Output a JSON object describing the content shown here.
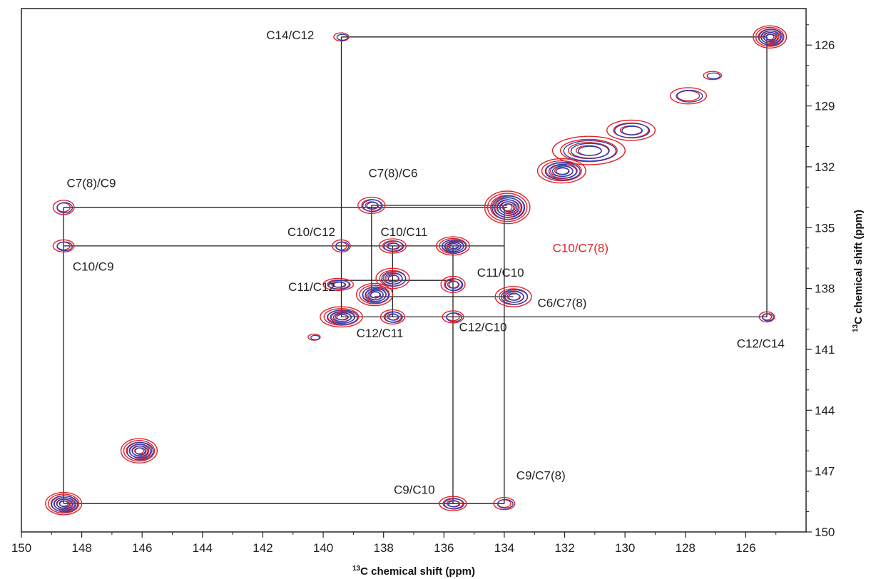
{
  "chart_data": {
    "type": "contour",
    "xlabel_super": "13",
    "xlabel_text": "C chemical shift (ppm)",
    "ylabel_super": "13",
    "ylabel_text": "C chemical shift (ppm)",
    "xlim": [
      150,
      124
    ],
    "ylim": [
      124.2,
      150
    ],
    "x_reversed": true,
    "y_axis_side": "right",
    "x_ticks": [
      150,
      148,
      146,
      144,
      142,
      140,
      138,
      136,
      134,
      132,
      130,
      128,
      126
    ],
    "y_ticks": [
      126,
      129,
      132,
      135,
      138,
      141,
      144,
      147,
      150
    ],
    "colors": {
      "spectrum_a": "#e0242b",
      "spectrum_b": "#2a3fb0",
      "connector": "#222222"
    },
    "peaks": [
      {
        "x": 125.2,
        "y": 125.6,
        "rx": 0.55,
        "ry": 0.55,
        "levels": 6
      },
      {
        "x": 127.9,
        "y": 128.5,
        "rx": 0.6,
        "ry": 0.4,
        "levels": 2
      },
      {
        "x": 129.8,
        "y": 130.2,
        "rx": 0.8,
        "ry": 0.5,
        "levels": 3
      },
      {
        "x": 131.2,
        "y": 131.2,
        "rx": 1.2,
        "ry": 0.7,
        "levels": 4
      },
      {
        "x": 132.1,
        "y": 132.2,
        "rx": 0.8,
        "ry": 0.6,
        "levels": 5
      },
      {
        "x": 133.9,
        "y": 134.0,
        "rx": 0.75,
        "ry": 0.8,
        "levels": 7
      },
      {
        "x": 133.7,
        "y": 138.4,
        "rx": 0.6,
        "ry": 0.5,
        "levels": 4
      },
      {
        "x": 135.7,
        "y": 135.9,
        "rx": 0.55,
        "ry": 0.45,
        "levels": 5
      },
      {
        "x": 135.7,
        "y": 137.8,
        "rx": 0.4,
        "ry": 0.4,
        "levels": 3
      },
      {
        "x": 135.7,
        "y": 139.4,
        "rx": 0.35,
        "ry": 0.3,
        "levels": 2
      },
      {
        "x": 137.7,
        "y": 135.9,
        "rx": 0.45,
        "ry": 0.35,
        "levels": 3
      },
      {
        "x": 138.4,
        "y": 133.9,
        "rx": 0.45,
        "ry": 0.4,
        "levels": 3
      },
      {
        "x": 137.7,
        "y": 137.5,
        "rx": 0.55,
        "ry": 0.5,
        "levels": 4
      },
      {
        "x": 138.3,
        "y": 138.3,
        "rx": 0.6,
        "ry": 0.55,
        "levels": 5
      },
      {
        "x": 137.7,
        "y": 139.4,
        "rx": 0.4,
        "ry": 0.35,
        "levels": 3
      },
      {
        "x": 139.4,
        "y": 139.4,
        "rx": 0.7,
        "ry": 0.5,
        "levels": 5
      },
      {
        "x": 139.5,
        "y": 137.8,
        "rx": 0.5,
        "ry": 0.3,
        "levels": 3
      },
      {
        "x": 139.4,
        "y": 135.9,
        "rx": 0.3,
        "ry": 0.3,
        "levels": 2
      },
      {
        "x": 146.1,
        "y": 146.0,
        "rx": 0.6,
        "ry": 0.6,
        "levels": 6
      },
      {
        "x": 148.6,
        "y": 148.6,
        "rx": 0.6,
        "ry": 0.55,
        "levels": 6
      },
      {
        "x": 148.6,
        "y": 134.0,
        "rx": 0.35,
        "ry": 0.35,
        "levels": 2
      },
      {
        "x": 148.6,
        "y": 135.9,
        "rx": 0.35,
        "ry": 0.3,
        "levels": 2
      },
      {
        "x": 135.7,
        "y": 148.6,
        "rx": 0.45,
        "ry": 0.35,
        "levels": 3
      },
      {
        "x": 134.0,
        "y": 148.6,
        "rx": 0.35,
        "ry": 0.3,
        "levels": 2
      },
      {
        "x": 125.3,
        "y": 139.4,
        "rx": 0.25,
        "ry": 0.25,
        "levels": 2
      },
      {
        "x": 139.4,
        "y": 125.6,
        "rx": 0.25,
        "ry": 0.2,
        "levels": 1
      },
      {
        "x": 127.1,
        "y": 127.5,
        "rx": 0.3,
        "ry": 0.2,
        "levels": 1
      },
      {
        "x": 140.3,
        "y": 140.4,
        "rx": 0.2,
        "ry": 0.15,
        "levels": 1
      }
    ],
    "connectors": [
      [
        139.4,
        125.6,
        125.3,
        125.6
      ],
      [
        125.3,
        125.6,
        125.3,
        139.4
      ],
      [
        139.4,
        125.6,
        139.4,
        139.4
      ],
      [
        148.6,
        134.0,
        133.9,
        134.0
      ],
      [
        148.6,
        134.0,
        148.6,
        148.6
      ],
      [
        148.6,
        148.6,
        134.0,
        148.6
      ],
      [
        148.6,
        135.9,
        134.0,
        135.9
      ],
      [
        139.4,
        139.4,
        125.3,
        139.4
      ],
      [
        138.4,
        133.9,
        133.9,
        133.9
      ],
      [
        138.4,
        133.9,
        138.4,
        138.3
      ],
      [
        139.5,
        137.6,
        135.7,
        137.6
      ],
      [
        137.7,
        135.9,
        137.7,
        139.4
      ],
      [
        138.3,
        138.4,
        133.7,
        138.4
      ],
      [
        135.7,
        135.9,
        135.7,
        148.6
      ],
      [
        134.0,
        134.0,
        134.0,
        148.6
      ]
    ],
    "annotations": [
      {
        "text": "C14/C12",
        "x": 140.3,
        "y": 125.5,
        "anchor": "end",
        "color": "dark"
      },
      {
        "text": "C7(8)/C9",
        "x": 148.5,
        "y": 132.8,
        "anchor": "start",
        "color": "dark"
      },
      {
        "text": "C10/C9",
        "x": 148.3,
        "y": 136.9,
        "anchor": "start",
        "color": "dark"
      },
      {
        "text": "C7(8)/C6",
        "x": 138.5,
        "y": 132.3,
        "anchor": "start",
        "color": "dark"
      },
      {
        "text": "C10/C12",
        "x": 139.6,
        "y": 135.2,
        "anchor": "end",
        "color": "dark"
      },
      {
        "text": "C10/C11",
        "x": 138.1,
        "y": 135.2,
        "anchor": "start",
        "color": "dark"
      },
      {
        "text": "C10/C7(8)",
        "x": 132.4,
        "y": 136.0,
        "anchor": "start",
        "color": "red"
      },
      {
        "text": "C11/C12",
        "x": 139.6,
        "y": 137.9,
        "anchor": "end",
        "color": "dark"
      },
      {
        "text": "C11/C10",
        "x": 134.9,
        "y": 137.2,
        "anchor": "start",
        "color": "dark"
      },
      {
        "text": "C6/C7(8)",
        "x": 132.9,
        "y": 138.7,
        "anchor": "start",
        "color": "dark"
      },
      {
        "text": "C12/C11",
        "x": 138.9,
        "y": 140.2,
        "anchor": "start",
        "color": "dark"
      },
      {
        "text": "C12/C10",
        "x": 135.5,
        "y": 139.9,
        "anchor": "start",
        "color": "dark"
      },
      {
        "text": "C12/C14",
        "x": 126.3,
        "y": 140.7,
        "anchor": "start",
        "color": "dark"
      },
      {
        "text": "C9/C10",
        "x": 136.3,
        "y": 147.9,
        "anchor": "end",
        "color": "dark"
      },
      {
        "text": "C9/C7(8)",
        "x": 133.6,
        "y": 147.2,
        "anchor": "start",
        "color": "dark"
      }
    ]
  }
}
